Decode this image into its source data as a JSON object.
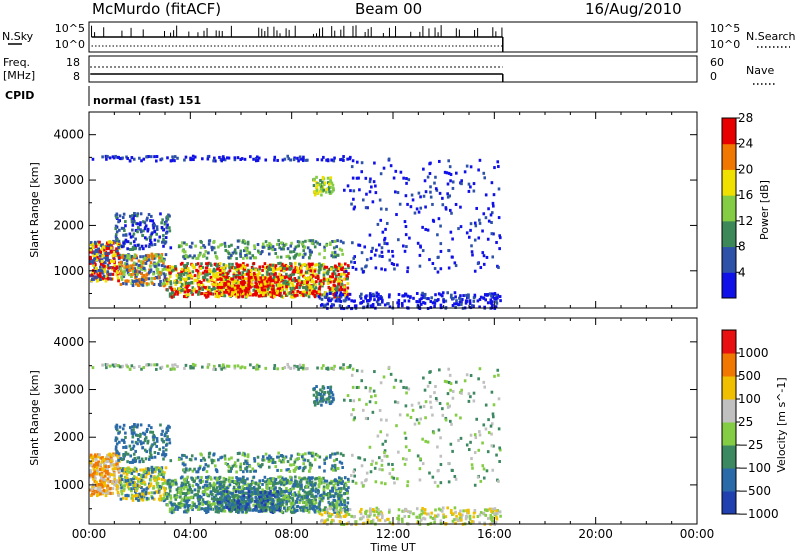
{
  "header": {
    "station": "McMurdo (fitACF)",
    "beam": "Beam 00",
    "date": "16/Aug/2010"
  },
  "top_panels": {
    "nsky_label": "N.Sky",
    "nsearch_label": "N.Search",
    "freq_label_line1": "Freq.",
    "freq_label_line2": "[MHz]",
    "nave_label": "Nave",
    "cpid_label": "CPID",
    "cpid_text": "normal (fast) 151",
    "noise_left_ticks": [
      "10^5",
      "10^0"
    ],
    "noise_right_ticks": [
      "10^5",
      "10^0"
    ],
    "freq_left_ticks": [
      "18",
      "8"
    ],
    "nave_right_ticks": [
      "60",
      "0"
    ]
  },
  "chart_data": [
    {
      "type": "heatmap",
      "title": "",
      "quantity": "Power",
      "xlabel": "",
      "ylabel": "Slant Range [km]",
      "ylim": [
        180,
        4500
      ],
      "yticks": [
        1000,
        2000,
        3000,
        4000
      ],
      "xlim": [
        "00:00",
        "24:00"
      ],
      "colorbar_label": "Power [dB]",
      "colorbar_ticks": [
        "4",
        "8",
        "12",
        "16",
        "20",
        "24",
        "28"
      ],
      "colorbar_colors": [
        "#1010e8",
        "#2e52a8",
        "#3c8858",
        "#84cc44",
        "#f0e000",
        "#f07800",
        "#e80000"
      ],
      "data_end_time": "16:20"
    },
    {
      "type": "heatmap",
      "title": "",
      "quantity": "Velocity",
      "xlabel": "Time UT",
      "ylabel": "Slant Range [km]",
      "ylim": [
        180,
        4500
      ],
      "yticks": [
        1000,
        2000,
        3000,
        4000
      ],
      "xlim": [
        "00:00",
        "24:00"
      ],
      "xticks": [
        "00:00",
        "04:00",
        "08:00",
        "12:00",
        "16:00",
        "20:00",
        "00:00"
      ],
      "colorbar_label": "Velocity [m s^-1]",
      "colorbar_ticks": [
        "1000",
        "500",
        "100",
        "25",
        "-25",
        "-100",
        "-500",
        "-1000"
      ],
      "colorbar_colors": [
        "#2040b0",
        "#2a6aa8",
        "#3c8860",
        "#84cc44",
        "#c0c0c0",
        "#f0c000",
        "#f07800",
        "#e81010"
      ],
      "data_end_time": "16:20"
    }
  ]
}
